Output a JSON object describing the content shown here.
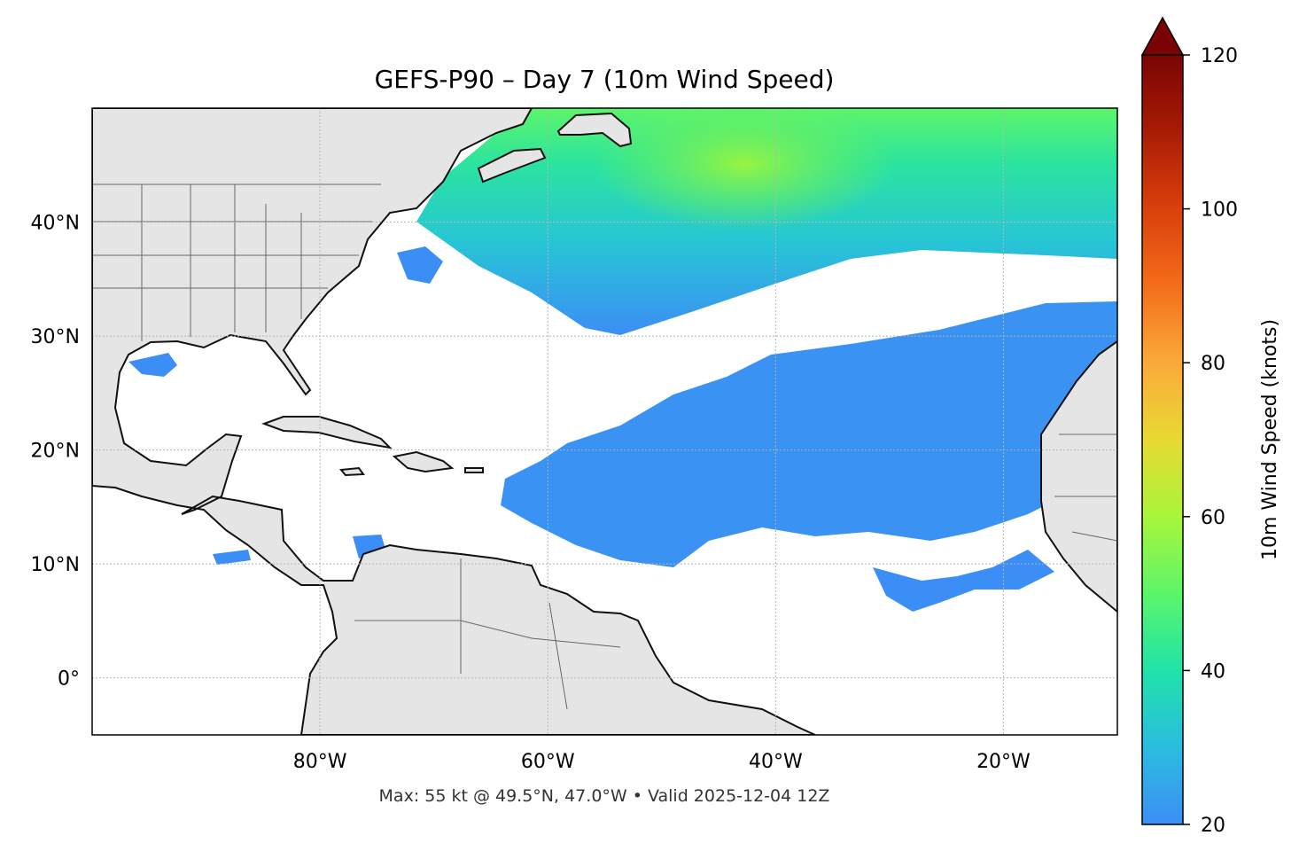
{
  "title": "GEFS-P90 – Day 7 (10m Wind Speed)",
  "footer": "Max: 55 kt @ 49.5°N, 47.0°W • Valid 2025-12-04 12Z",
  "map": {
    "lon_range": [
      -100,
      -10
    ],
    "lat_range": [
      -5,
      50
    ],
    "lat_ticks": [
      {
        "lat": 40,
        "label": "40°N"
      },
      {
        "lat": 30,
        "label": "30°N"
      },
      {
        "lat": 20,
        "label": "20°N"
      },
      {
        "lat": 10,
        "label": "10°N"
      },
      {
        "lat": 0,
        "label": "0°"
      }
    ],
    "lon_ticks": [
      {
        "lon": -80,
        "label": "80°W"
      },
      {
        "lon": -60,
        "label": "60°W"
      },
      {
        "lon": -40,
        "label": "40°W"
      },
      {
        "lon": -20,
        "label": "20°W"
      }
    ],
    "gridlines": true,
    "land_color": "#e5e5e5",
    "ocean_color": "#ffffff",
    "max_marker": {
      "value_kt": 55,
      "lat": 49.5,
      "lon": -47.0
    }
  },
  "colorbar": {
    "label": "10m Wind Speed (knots)",
    "min": 20,
    "max": 120,
    "extend": "max",
    "ticks": [
      {
        "value": 20,
        "label": "20"
      },
      {
        "value": 40,
        "label": "40"
      },
      {
        "value": 60,
        "label": "60"
      },
      {
        "value": 80,
        "label": "80"
      },
      {
        "value": 100,
        "label": "100"
      },
      {
        "value": 120,
        "label": "120"
      }
    ],
    "colormap": "turbo",
    "colors": [
      "#3c8ef5",
      "#2bbde0",
      "#1fe3a8",
      "#5cf56a",
      "#a9f53a",
      "#e8d932",
      "#fbaa3a",
      "#f46d1a",
      "#d9400c",
      "#a91c05",
      "#7a0403"
    ]
  }
}
